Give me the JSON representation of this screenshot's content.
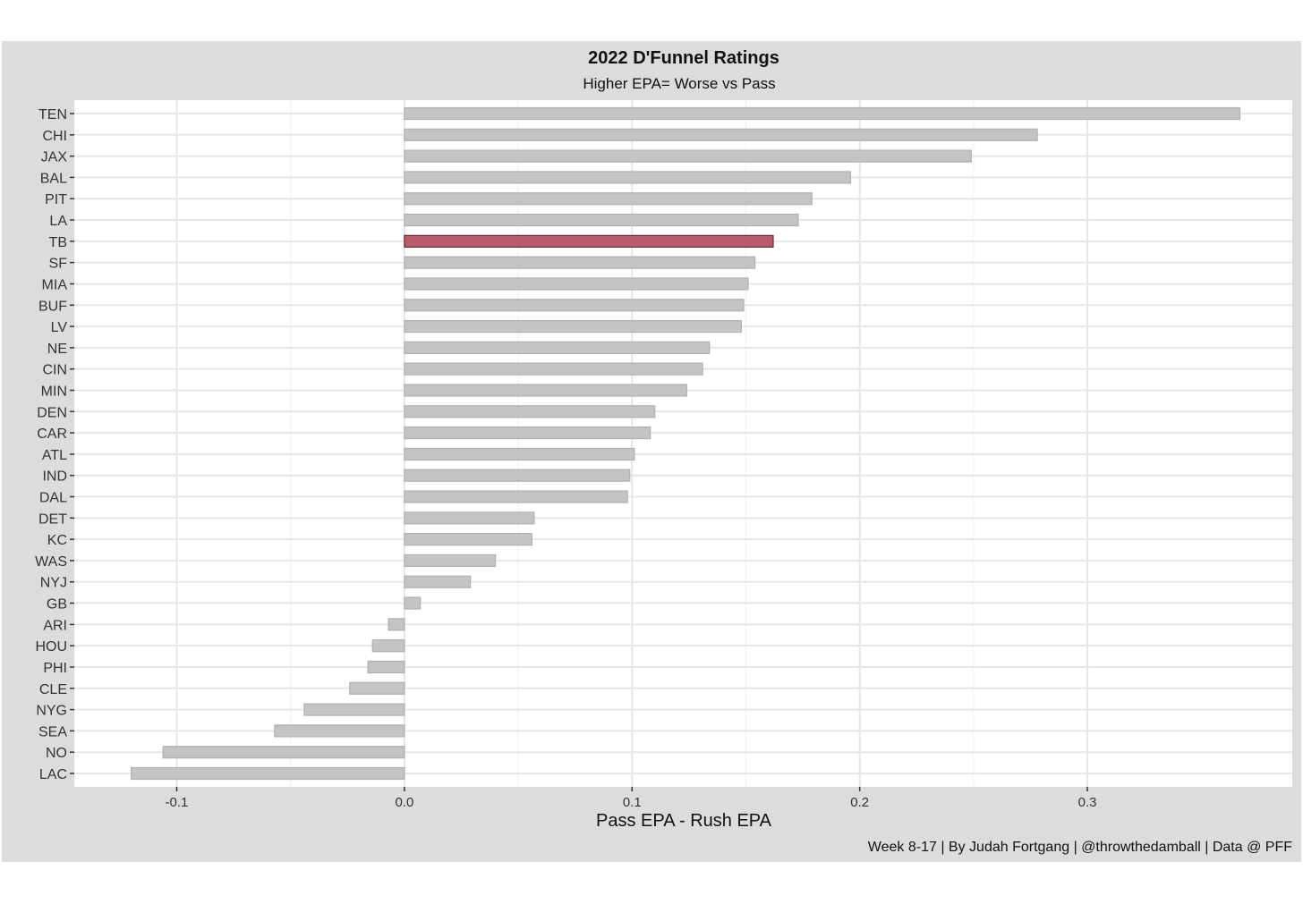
{
  "chart_data": {
    "type": "bar",
    "orientation": "horizontal",
    "title": "2022 D'Funnel Ratings",
    "subtitle": "Higher EPA= Worse vs Pass",
    "xlabel": "Pass EPA - Rush EPA",
    "ylabel": "",
    "caption": "Week 8-17 | By Judah Fortgang | @throwthedamball | Data @ PFF",
    "xlim": [
      -0.145,
      0.39
    ],
    "xticks": [
      -0.1,
      0.0,
      0.1,
      0.2,
      0.3
    ],
    "xtick_labels": [
      "-0.1",
      "0.0",
      "0.1",
      "0.2",
      "0.3"
    ],
    "grid": true,
    "highlight": "TB",
    "colors": {
      "bar": "#c4c4c4",
      "bar_border": "#b0b0b0",
      "highlight": "#b85c6b",
      "highlight_border": "#6b2a34",
      "panel": "#ffffff",
      "background": "#dcdcdc",
      "grid": "#e6e6e6"
    },
    "categories": [
      "TEN",
      "CHI",
      "JAX",
      "BAL",
      "PIT",
      "LA",
      "TB",
      "SF",
      "MIA",
      "BUF",
      "LV",
      "NE",
      "CIN",
      "MIN",
      "DEN",
      "CAR",
      "ATL",
      "IND",
      "DAL",
      "DET",
      "KC",
      "WAS",
      "NYJ",
      "GB",
      "ARI",
      "HOU",
      "PHI",
      "CLE",
      "NYG",
      "SEA",
      "NO",
      "LAC"
    ],
    "values": [
      0.367,
      0.278,
      0.249,
      0.196,
      0.179,
      0.173,
      0.162,
      0.154,
      0.151,
      0.149,
      0.148,
      0.134,
      0.131,
      0.124,
      0.11,
      0.108,
      0.101,
      0.099,
      0.098,
      0.057,
      0.056,
      0.04,
      0.029,
      0.007,
      -0.007,
      -0.014,
      -0.016,
      -0.024,
      -0.044,
      -0.057,
      -0.106,
      -0.12
    ]
  }
}
